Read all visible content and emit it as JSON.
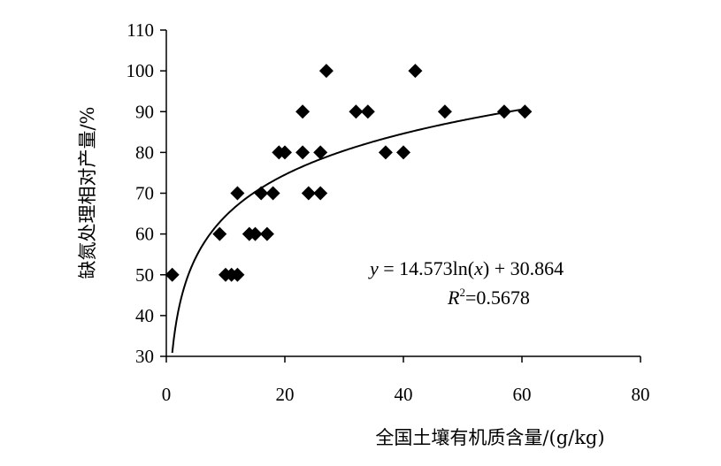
{
  "chart_data": {
    "type": "scatter",
    "title": "",
    "xlabel": "全国土壤有机质含量/(g/kg)",
    "ylabel": "缺氮处理相对产量/%",
    "xlim": [
      0,
      80
    ],
    "ylim": [
      30,
      110
    ],
    "xticks": [
      0,
      20,
      40,
      60,
      80
    ],
    "yticks": [
      30,
      40,
      50,
      60,
      70,
      80,
      90,
      100,
      110
    ],
    "grid": false,
    "legend": "none",
    "marker": "diamond",
    "marker_color": "#000000",
    "points": [
      {
        "x": 1,
        "y": 50
      },
      {
        "x": 9,
        "y": 60
      },
      {
        "x": 10,
        "y": 50
      },
      {
        "x": 11,
        "y": 50
      },
      {
        "x": 12,
        "y": 50
      },
      {
        "x": 12,
        "y": 70
      },
      {
        "x": 14,
        "y": 60
      },
      {
        "x": 15,
        "y": 60
      },
      {
        "x": 16,
        "y": 70
      },
      {
        "x": 17,
        "y": 60
      },
      {
        "x": 18,
        "y": 70
      },
      {
        "x": 19,
        "y": 80
      },
      {
        "x": 20,
        "y": 80
      },
      {
        "x": 23,
        "y": 90
      },
      {
        "x": 23,
        "y": 80
      },
      {
        "x": 24,
        "y": 70
      },
      {
        "x": 26,
        "y": 70
      },
      {
        "x": 26,
        "y": 80
      },
      {
        "x": 27,
        "y": 100
      },
      {
        "x": 32,
        "y": 90
      },
      {
        "x": 34,
        "y": 90
      },
      {
        "x": 37,
        "y": 80
      },
      {
        "x": 40,
        "y": 80
      },
      {
        "x": 42,
        "y": 100
      },
      {
        "x": 47,
        "y": 90
      },
      {
        "x": 57,
        "y": 90
      },
      {
        "x": 60.5,
        "y": 90
      }
    ],
    "trendline": {
      "type": "logarithmic",
      "a": 14.573,
      "b": 30.864,
      "x_range": [
        1,
        60.5
      ],
      "equation_y": "y",
      "equation_eq": " = 14.573ln(",
      "equation_x": "x",
      "equation_rest": ") + 30.864",
      "r2_label": "R",
      "r2_sup": "2",
      "r2_value": "=0.5678"
    }
  }
}
